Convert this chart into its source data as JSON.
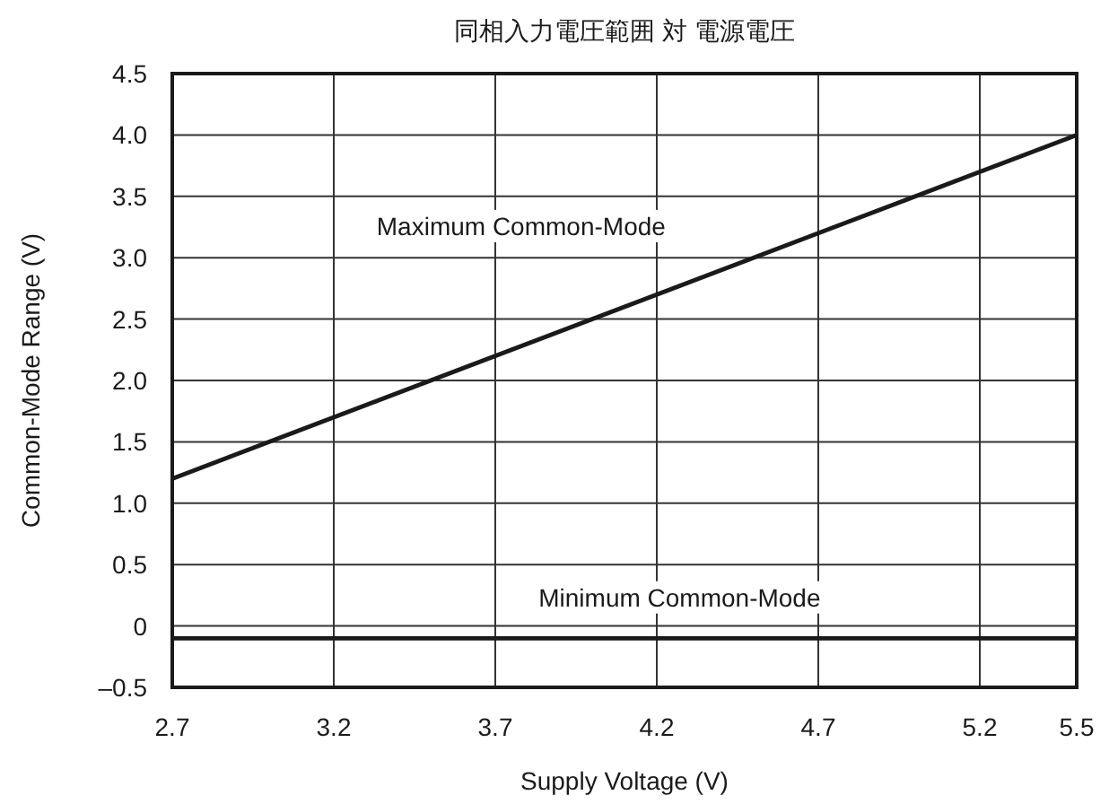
{
  "chart_data": {
    "type": "line",
    "title": "同相入力電圧範囲 対 電源電圧",
    "xlabel": "Supply Voltage (V)",
    "ylabel": "Common-Mode Range (V)",
    "xlim": [
      2.7,
      5.5
    ],
    "xticks": [
      2.7,
      3.2,
      3.7,
      4.2,
      4.7,
      5.2,
      5.5
    ],
    "ylim": [
      -0.5,
      4.5
    ],
    "yticks": [
      {
        "value": -0.5,
        "label": "–0.5"
      },
      0,
      0.5,
      {
        "value": 1.0,
        "label": "1.0"
      },
      1.5,
      {
        "value": 2.0,
        "label": "2.0"
      },
      2.5,
      {
        "value": 3.0,
        "label": "3.0"
      },
      3.5,
      {
        "value": 4.0,
        "label": "4.0"
      },
      4.5
    ],
    "x": [
      2.7,
      5.5
    ],
    "grid": true,
    "marker": "none",
    "line_style": "solid",
    "series": [
      {
        "name": "Maximum Common-Mode",
        "color": "#1a1a1a",
        "values": [
          1.2,
          4.0
        ]
      },
      {
        "name": "Minimum Common-Mode",
        "color": "#1a1a1a",
        "values": [
          -0.1,
          -0.1
        ]
      }
    ]
  }
}
